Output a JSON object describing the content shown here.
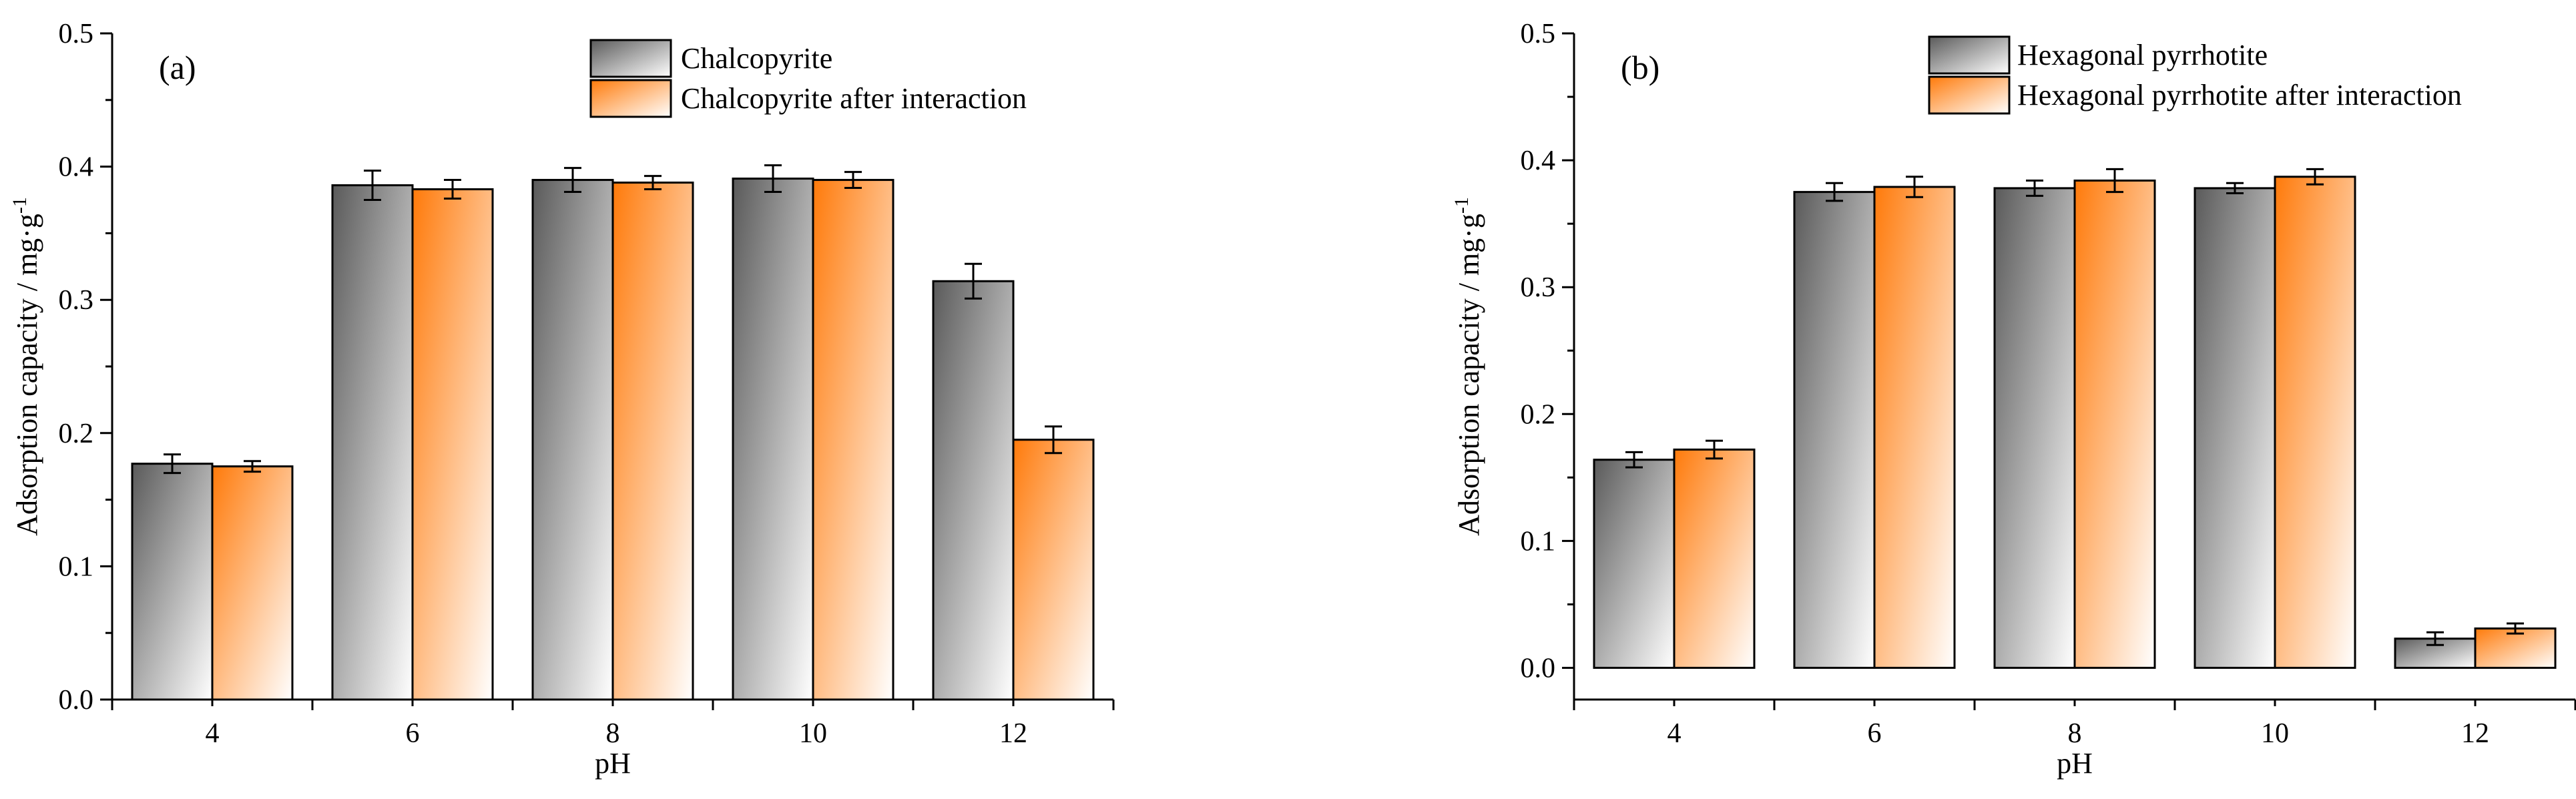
{
  "colors": {
    "series1": "#707070",
    "series2": "#ff7f14"
  },
  "chart_data": [
    {
      "type": "bar",
      "panel_label": "(a)",
      "title": "",
      "xlabel": "pH",
      "ylabel": "Adsorption capacity / mg·g",
      "ylabel_sup": "-1",
      "categories": [
        "4",
        "6",
        "8",
        "10",
        "12"
      ],
      "ylim": [
        0,
        0.5
      ],
      "yticks": [
        0.0,
        0.1,
        0.2,
        0.3,
        0.4,
        0.5
      ],
      "ytick_labels": [
        "0.0",
        "0.1",
        "0.2",
        "0.3",
        "0.4",
        "0.5"
      ],
      "legend_position": "top-right",
      "series": [
        {
          "name": "Chalcopyrite",
          "values": [
            0.177,
            0.386,
            0.39,
            0.391,
            0.314
          ],
          "errors": [
            0.007,
            0.011,
            0.009,
            0.01,
            0.013
          ]
        },
        {
          "name": "Chalcopyrite after interaction",
          "values": [
            0.175,
            0.383,
            0.388,
            0.39,
            0.195
          ],
          "errors": [
            0.004,
            0.007,
            0.005,
            0.006,
            0.01
          ]
        }
      ]
    },
    {
      "type": "bar",
      "panel_label": "(b)",
      "title": "",
      "xlabel": "pH",
      "ylabel": "Adsorption capacity / mg·g",
      "ylabel_sup": "-1",
      "categories": [
        "4",
        "6",
        "8",
        "10",
        "12"
      ],
      "ylim": [
        -0.025,
        0.5
      ],
      "yticks": [
        0.0,
        0.1,
        0.2,
        0.3,
        0.4,
        0.5
      ],
      "ytick_labels": [
        "0.0",
        "0.1",
        "0.2",
        "0.3",
        "0.4",
        "0.5"
      ],
      "legend_position": "top-right",
      "series": [
        {
          "name": "Hexagonal pyrrhotite",
          "values": [
            0.164,
            0.375,
            0.378,
            0.378,
            0.023
          ],
          "errors": [
            0.006,
            0.007,
            0.006,
            0.004,
            0.005
          ]
        },
        {
          "name": "Hexagonal pyrrhotite after interaction",
          "values": [
            0.172,
            0.379,
            0.384,
            0.387,
            0.031
          ],
          "errors": [
            0.007,
            0.008,
            0.009,
            0.006,
            0.004
          ]
        }
      ]
    }
  ]
}
